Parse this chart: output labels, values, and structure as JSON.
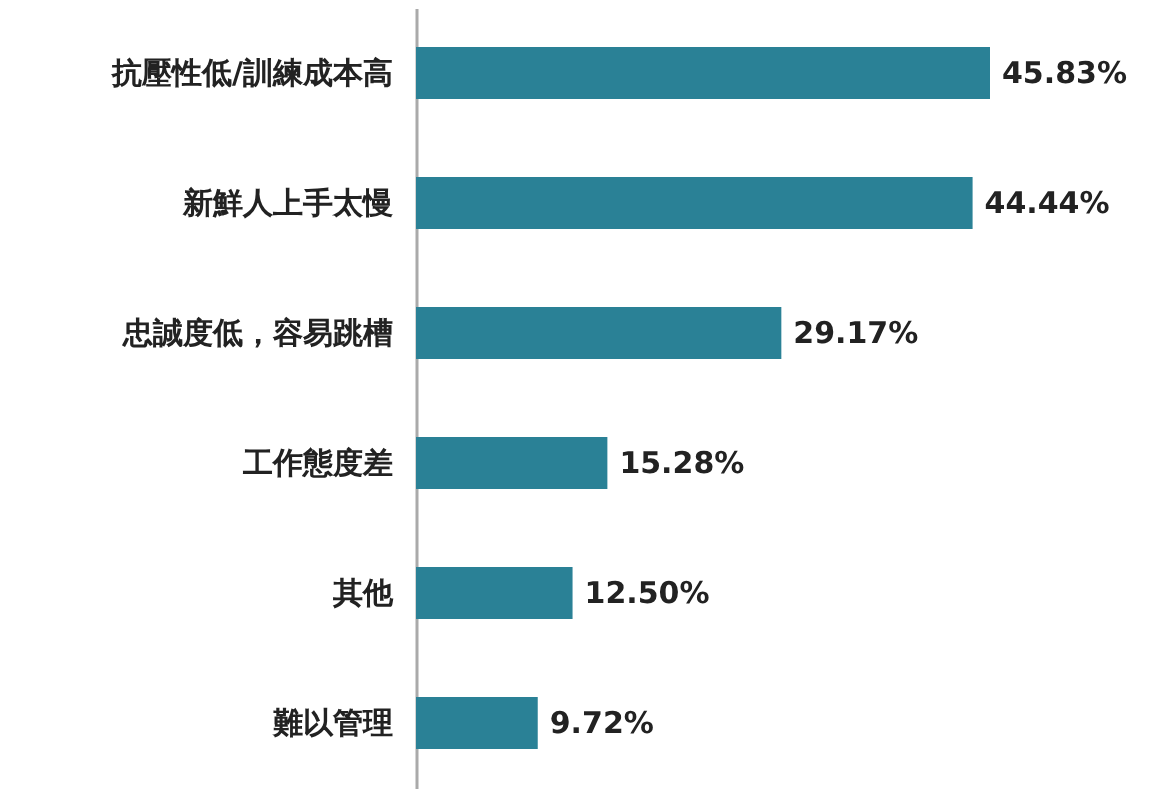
{
  "chart_data": {
    "type": "bar",
    "orientation": "horizontal",
    "categories": [
      "抗壓性低/訓練成本高",
      "新鮮人上手太慢",
      "忠誠度低，容易跳槽",
      "工作態度差",
      "其他",
      "難以管理"
    ],
    "values": [
      45.83,
      44.44,
      29.17,
      15.28,
      12.5,
      9.72
    ],
    "value_labels": [
      "45.83%",
      "44.44%",
      "29.17%",
      "15.28%",
      "12.50%",
      "9.72%"
    ],
    "color": "#2a8196"
  }
}
